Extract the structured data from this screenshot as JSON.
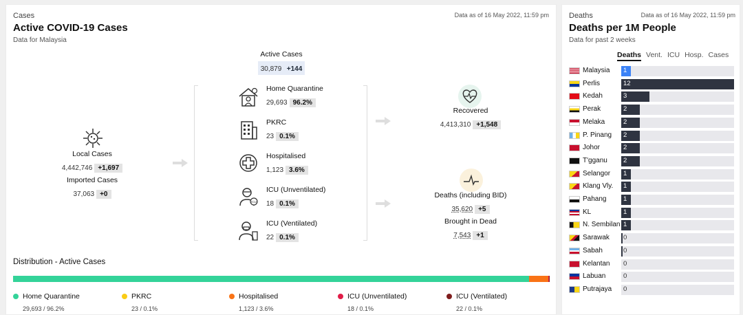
{
  "left": {
    "kicker": "Cases",
    "title": "Active COVID-19 Cases",
    "subtitle": "Data for Malaysia",
    "asof": "Data as of 16 May 2022, 11:59 pm",
    "active_cases": {
      "label": "Active Cases",
      "value": "30,879",
      "delta": "+144"
    },
    "local": {
      "label": "Local Cases",
      "value": "4,442,746",
      "delta": "+1,697",
      "icon": "virus-icon"
    },
    "imported": {
      "label": "Imported Cases",
      "value": "37,063",
      "delta": "+0"
    },
    "categories": [
      {
        "label": "Home Quarantine",
        "value": "29,693",
        "pct": "96.2%",
        "icon": "house-icon"
      },
      {
        "label": "PKRC",
        "value": "23",
        "pct": "0.1%",
        "icon": "building-icon"
      },
      {
        "label": "Hospitalised",
        "value": "1,123",
        "pct": "3.6%",
        "icon": "medical-cross-icon"
      },
      {
        "label": "ICU (Unventilated)",
        "value": "18",
        "pct": "0.1%",
        "icon": "icu-patient-icon"
      },
      {
        "label": "ICU (Ventilated)",
        "value": "22",
        "pct": "0.1%",
        "icon": "ventilator-icon"
      }
    ],
    "recovered": {
      "label": "Recovered",
      "value": "4,413,310",
      "delta": "+1,548",
      "icon": "heartbeat-icon"
    },
    "deaths": {
      "label": "Deaths (including BID)",
      "value": "35,620",
      "delta": "+5",
      "icon": "ecg-icon"
    },
    "bid": {
      "label": "Brought in Dead",
      "value": "7,543",
      "delta": "+1"
    },
    "distribution": {
      "title": "Distribution - Active Cases",
      "segments": [
        {
          "name": "Home Quarantine",
          "value": "29,693 / 96.2%",
          "share": 0.962,
          "color": "#34d399"
        },
        {
          "name": "PKRC",
          "value": "23 / 0.1%",
          "share": 0.001,
          "color": "#facc15"
        },
        {
          "name": "Hospitalised",
          "value": "1,123 / 3.6%",
          "share": 0.036,
          "color": "#f97316"
        },
        {
          "name": "ICU (Unventilated)",
          "value": "18 / 0.1%",
          "share": 0.001,
          "color": "#e11d48"
        },
        {
          "name": "ICU (Ventilated)",
          "value": "22 / 0.1%",
          "share": 0.001,
          "color": "#7f1d1d"
        }
      ]
    }
  },
  "right": {
    "kicker": "Deaths",
    "title": "Deaths per 1M People",
    "subtitle": "Data for past 2 weeks",
    "asof": "Data as of 16 May 2022, 11:59 pm",
    "tabs": [
      "Deaths",
      "Vent.",
      "ICU",
      "Hosp.",
      "Cases"
    ],
    "active_tab": "Deaths",
    "max": 12,
    "states": [
      {
        "name": "Malaysia",
        "value": 1,
        "label": "1",
        "flag": "malaysia"
      },
      {
        "name": "Perlis",
        "value": 12,
        "label": "12",
        "flag": "perlis"
      },
      {
        "name": "Kedah",
        "value": 3,
        "label": "3",
        "flag": "kedah"
      },
      {
        "name": "Perak",
        "value": 2,
        "label": "2",
        "flag": "perak"
      },
      {
        "name": "Melaka",
        "value": 2,
        "label": "2",
        "flag": "melaka"
      },
      {
        "name": "P. Pinang",
        "value": 2,
        "label": "2",
        "flag": "penang"
      },
      {
        "name": "Johor",
        "value": 2,
        "label": "2",
        "flag": "johor"
      },
      {
        "name": "T'gganu",
        "value": 2,
        "label": "2",
        "flag": "terengganu"
      },
      {
        "name": "Selangor",
        "value": 1,
        "label": "1",
        "flag": "selangor"
      },
      {
        "name": "Klang Vly.",
        "value": 1,
        "label": "1",
        "flag": "klang"
      },
      {
        "name": "Pahang",
        "value": 1,
        "label": "1",
        "flag": "pahang"
      },
      {
        "name": "KL",
        "value": 1,
        "label": "1",
        "flag": "kl"
      },
      {
        "name": "N. Sembilan",
        "value": 1,
        "label": "1",
        "flag": "nsembilan"
      },
      {
        "name": "Sarawak",
        "value": 0.15,
        "label": "0",
        "flag": "sarawak"
      },
      {
        "name": "Sabah",
        "value": 0.15,
        "label": "0",
        "flag": "sabah"
      },
      {
        "name": "Kelantan",
        "value": 0,
        "label": "0",
        "flag": "kelantan"
      },
      {
        "name": "Labuan",
        "value": 0,
        "label": "0",
        "flag": "labuan"
      },
      {
        "name": "Putrajaya",
        "value": 0,
        "label": "0",
        "flag": "putrajaya"
      }
    ]
  }
}
